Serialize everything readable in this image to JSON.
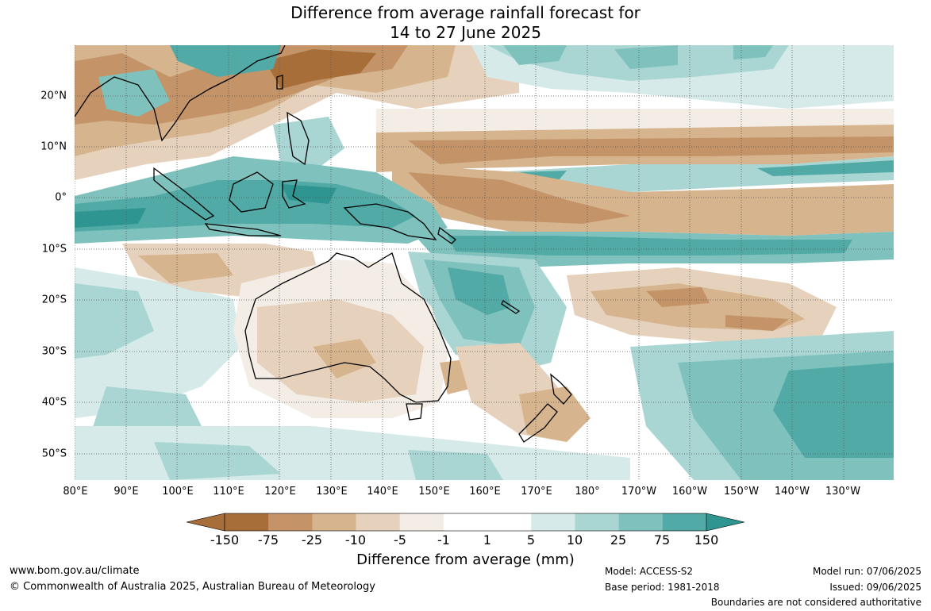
{
  "title": {
    "line1": "Difference from average rainfall forecast for",
    "line2": "14 to 27 June 2025"
  },
  "map": {
    "lat_labels": [
      "20°N",
      "10°N",
      "0°",
      "10°S",
      "20°S",
      "30°S",
      "40°S",
      "50°S"
    ],
    "lon_labels": [
      "80°E",
      "90°E",
      "100°E",
      "110°E",
      "120°E",
      "130°E",
      "140°E",
      "150°E",
      "160°E",
      "170°E",
      "180°",
      "170°W",
      "160°W",
      "150°W",
      "140°W",
      "130°W"
    ],
    "colors": {
      "dry_strong": "#a86e3a",
      "dry": "#c49468",
      "dry_mod": "#d6b48e",
      "dry_light": "#e6d2bc",
      "dry_faint": "#f3ede6",
      "neutral": "#ffffff",
      "wet_faint": "#d6ebe9",
      "wet_light": "#a9d6d3",
      "wet_mod": "#7fc1bd",
      "wet": "#52aaa6",
      "wet_strong": "#2e9590"
    }
  },
  "legend": {
    "colors": [
      "#a86e3a",
      "#c49468",
      "#d6b48e",
      "#e6d2bc",
      "#f3ede6",
      "#ffffff",
      "#ffffff",
      "#d6ebe9",
      "#a9d6d3",
      "#7fc1bd",
      "#52aaa6",
      "#2e9590"
    ],
    "labels": [
      "-150",
      "-75",
      "-25",
      "-10",
      "-5",
      "-1",
      "1",
      "5",
      "10",
      "25",
      "75",
      "150"
    ],
    "title": "Difference from average (mm)"
  },
  "footer": {
    "website": "www.bom.gov.au/climate",
    "copyright": "© Commonwealth of Australia 2025, Australian Bureau of Meteorology",
    "model": "Model: ACCESS-S2",
    "base_period": "Base period: 1981-2018",
    "model_run": "Model run: 07/06/2025",
    "issued": "Issued: 09/06/2025",
    "boundaries_note": "Boundaries are not considered authoritative"
  }
}
